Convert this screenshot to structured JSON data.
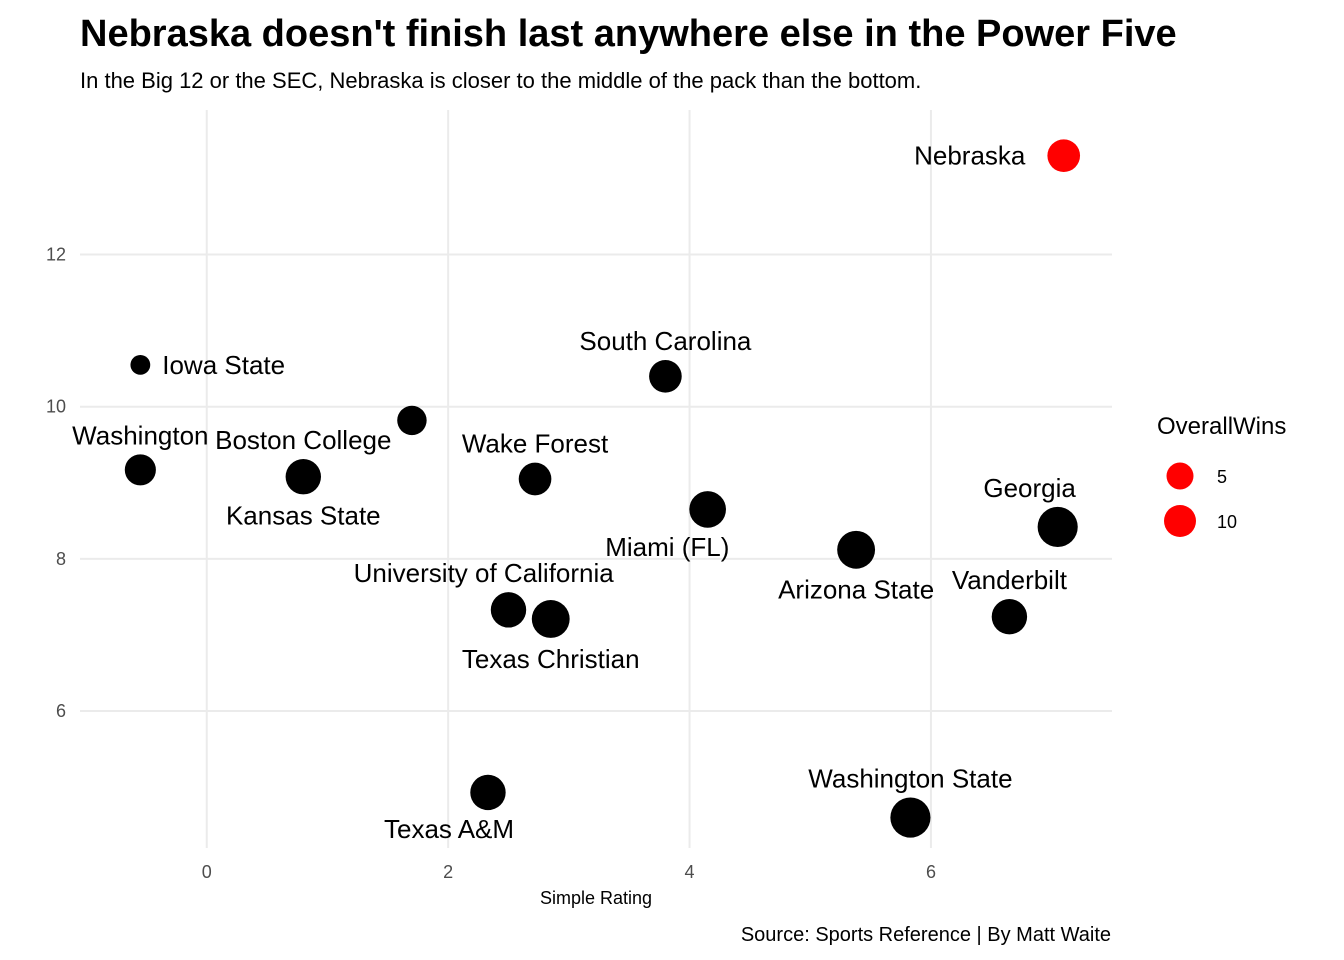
{
  "chart_data": {
    "type": "scatter",
    "title": "Nebraska doesn't finish last anywhere else in the Power Five",
    "subtitle": "In the Big 12 or the SEC, Nebraska is closer to the middle of the pack than the bottom.",
    "xlabel": "Simple Rating",
    "ylabel": "",
    "caption": "Source: Sports Reference | By Matt Waite",
    "xlim": [
      -1.05,
      7.5
    ],
    "ylim": [
      4.2,
      13.9
    ],
    "x_ticks": [
      0,
      2,
      4,
      6
    ],
    "y_ticks": [
      6,
      8,
      10,
      12
    ],
    "grid": true,
    "highlight_color": "#ff0000",
    "point_color": "#000000",
    "size_legend": {
      "title": "OverallWins",
      "entries": [
        {
          "label": "5",
          "value": 5
        },
        {
          "label": "10",
          "value": 10
        }
      ],
      "color": "#ff0000",
      "position": "right"
    },
    "points": [
      {
        "name": "Nebraska",
        "x": 7.1,
        "y": 13.3,
        "size": 7,
        "highlight": true,
        "label_pos": "left"
      },
      {
        "name": "Iowa State",
        "x": -0.55,
        "y": 10.55,
        "size": 1,
        "highlight": false,
        "label_pos": "right"
      },
      {
        "name": "South Carolina",
        "x": 3.8,
        "y": 10.4,
        "size": 7,
        "highlight": false,
        "label_pos": "above"
      },
      {
        "name": "",
        "x": 1.7,
        "y": 9.82,
        "size": 5,
        "highlight": false,
        "label_pos": "none"
      },
      {
        "name": "Washington",
        "x": -0.55,
        "y": 9.17,
        "size": 6,
        "highlight": false,
        "label_pos": "above"
      },
      {
        "name": "Boston College",
        "x": 0.8,
        "y": 9.08,
        "size": 9,
        "highlight": false,
        "label_pos": "above"
      },
      {
        "name": "Kansas State",
        "x": 0.8,
        "y": 9.08,
        "size": 9,
        "highlight": false,
        "label_pos": "below"
      },
      {
        "name": "Wake Forest",
        "x": 2.72,
        "y": 9.05,
        "size": 7,
        "highlight": false,
        "label_pos": "above"
      },
      {
        "name": "Miami (FL)",
        "x": 4.15,
        "y": 8.65,
        "size": 10,
        "highlight": false,
        "label_pos": "below-left"
      },
      {
        "name": "Georgia",
        "x": 7.05,
        "y": 8.42,
        "size": 13,
        "highlight": false,
        "label_pos": "above-left"
      },
      {
        "name": "Arizona State",
        "x": 5.38,
        "y": 8.12,
        "size": 11,
        "highlight": false,
        "label_pos": "below"
      },
      {
        "name": "University of California",
        "x": 2.5,
        "y": 7.33,
        "size": 9,
        "highlight": false,
        "label_pos": "above-left"
      },
      {
        "name": "Vanderbilt",
        "x": 6.65,
        "y": 7.24,
        "size": 9,
        "highlight": false,
        "label_pos": "above"
      },
      {
        "name": "Texas Christian",
        "x": 2.85,
        "y": 7.21,
        "size": 11,
        "highlight": false,
        "label_pos": "below"
      },
      {
        "name": "Texas A&M",
        "x": 2.33,
        "y": 4.93,
        "size": 9,
        "highlight": false,
        "label_pos": "below-left"
      },
      {
        "name": "Washington State",
        "x": 5.83,
        "y": 4.6,
        "size": 13,
        "highlight": false,
        "label_pos": "above"
      }
    ]
  }
}
